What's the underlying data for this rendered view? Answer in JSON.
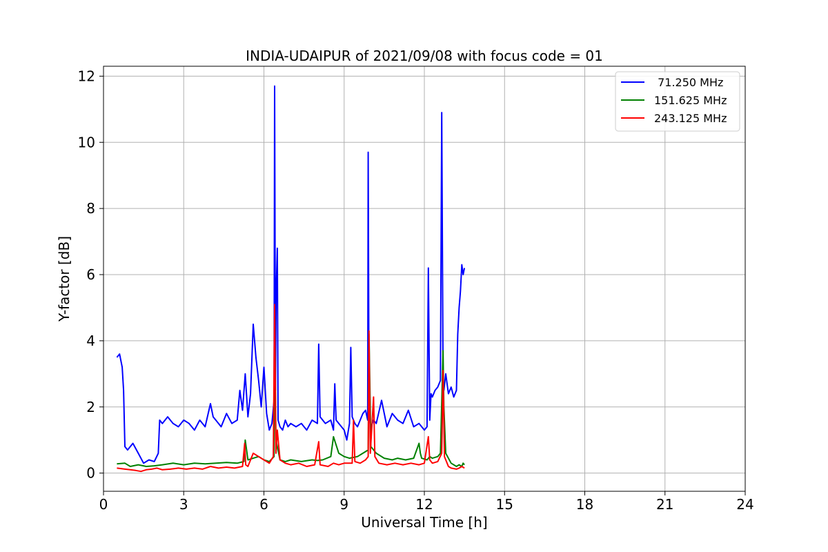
{
  "chart_data": {
    "type": "line",
    "title": "INDIA-UDAIPUR of 2021/09/08 with focus code = 01",
    "xlabel": "Universal Time [h]",
    "ylabel": "Y-factor [dB]",
    "xlim": [
      0,
      24
    ],
    "ylim": [
      -0.55,
      12.3
    ],
    "xticks": [
      "0",
      "3",
      "6",
      "9",
      "12",
      "15",
      "18",
      "21",
      "24"
    ],
    "yticks": [
      "0",
      "2",
      "4",
      "6",
      "8",
      "10",
      "12"
    ],
    "grid": true,
    "legend_position": "top-right",
    "series": [
      {
        "name": " 71.250 MHz",
        "color": "#0000ff",
        "x": [
          0.5,
          0.6,
          0.7,
          0.75,
          0.8,
          0.9,
          1.1,
          1.3,
          1.5,
          1.7,
          1.9,
          2.05,
          2.1,
          2.2,
          2.4,
          2.6,
          2.8,
          3.0,
          3.2,
          3.4,
          3.6,
          3.8,
          4.0,
          4.1,
          4.2,
          4.4,
          4.6,
          4.8,
          5.0,
          5.1,
          5.2,
          5.3,
          5.4,
          5.5,
          5.6,
          5.7,
          5.8,
          5.9,
          6.0,
          6.1,
          6.2,
          6.3,
          6.38,
          6.4,
          6.43,
          6.46,
          6.5,
          6.53,
          6.6,
          6.7,
          6.8,
          6.9,
          7.0,
          7.2,
          7.4,
          7.6,
          7.8,
          8.0,
          8.05,
          8.1,
          8.3,
          8.5,
          8.6,
          8.65,
          8.7,
          8.9,
          9.0,
          9.1,
          9.2,
          9.25,
          9.3,
          9.4,
          9.5,
          9.6,
          9.7,
          9.8,
          9.88,
          9.9,
          9.93,
          9.97,
          10.0,
          10.1,
          10.2,
          10.4,
          10.6,
          10.8,
          11.0,
          11.2,
          11.4,
          11.6,
          11.8,
          12.0,
          12.1,
          12.15,
          12.2,
          12.25,
          12.3,
          12.4,
          12.5,
          12.6,
          12.65,
          12.7,
          12.73,
          12.8,
          12.9,
          13.0,
          13.1,
          13.2,
          13.25,
          13.3,
          13.35,
          13.4,
          13.45,
          13.5
        ],
        "y": [
          3.5,
          3.6,
          3.2,
          2.5,
          0.8,
          0.7,
          0.9,
          0.6,
          0.3,
          0.4,
          0.35,
          0.6,
          1.6,
          1.5,
          1.7,
          1.5,
          1.4,
          1.6,
          1.5,
          1.3,
          1.6,
          1.4,
          2.1,
          1.7,
          1.6,
          1.4,
          1.8,
          1.5,
          1.6,
          2.5,
          1.9,
          3.0,
          1.7,
          2.4,
          4.5,
          3.5,
          2.8,
          2.0,
          3.2,
          1.8,
          1.3,
          1.5,
          2.2,
          11.7,
          2.5,
          5.5,
          6.8,
          1.6,
          1.4,
          1.3,
          1.6,
          1.4,
          1.5,
          1.4,
          1.5,
          1.3,
          1.6,
          1.5,
          3.9,
          1.7,
          1.5,
          1.6,
          1.3,
          2.7,
          1.6,
          1.4,
          1.3,
          1.0,
          1.5,
          3.8,
          1.7,
          1.5,
          1.4,
          1.6,
          1.8,
          1.9,
          1.6,
          9.7,
          2.0,
          1.5,
          1.4,
          1.6,
          1.5,
          2.2,
          1.4,
          1.8,
          1.6,
          1.5,
          1.9,
          1.4,
          1.5,
          1.3,
          1.4,
          6.2,
          1.6,
          2.4,
          2.3,
          2.5,
          2.6,
          2.8,
          10.9,
          2.9,
          2.5,
          3.0,
          2.4,
          2.6,
          2.3,
          2.5,
          4.2,
          5.0,
          5.5,
          6.3,
          6.0,
          6.2
        ],
        "stroke_width": 2
      },
      {
        "name": "151.625 MHz",
        "color": "#008000",
        "x": [
          0.5,
          0.8,
          1.0,
          1.3,
          1.6,
          1.9,
          2.2,
          2.6,
          3.0,
          3.4,
          3.8,
          4.2,
          4.6,
          5.0,
          5.25,
          5.3,
          5.4,
          5.6,
          5.8,
          6.0,
          6.2,
          6.38,
          6.4,
          6.45,
          6.6,
          6.8,
          7.0,
          7.4,
          7.8,
          8.0,
          8.2,
          8.5,
          8.6,
          8.8,
          9.0,
          9.2,
          9.5,
          9.7,
          9.9,
          9.93,
          10.0,
          10.2,
          10.5,
          10.8,
          11.0,
          11.3,
          11.6,
          11.8,
          11.85,
          11.9,
          12.1,
          12.2,
          12.3,
          12.5,
          12.6,
          12.7,
          12.73,
          12.8,
          13.0,
          13.2,
          13.3,
          13.4,
          13.45,
          13.5
        ],
        "y": [
          0.28,
          0.3,
          0.2,
          0.25,
          0.2,
          0.22,
          0.25,
          0.3,
          0.25,
          0.3,
          0.28,
          0.3,
          0.32,
          0.3,
          0.35,
          1.0,
          0.4,
          0.45,
          0.5,
          0.4,
          0.35,
          0.5,
          5.0,
          1.0,
          0.4,
          0.35,
          0.4,
          0.35,
          0.4,
          0.38,
          0.4,
          0.5,
          1.1,
          0.6,
          0.5,
          0.45,
          0.5,
          0.6,
          0.7,
          4.2,
          0.8,
          0.6,
          0.45,
          0.4,
          0.45,
          0.4,
          0.45,
          0.9,
          0.6,
          0.45,
          0.4,
          0.5,
          0.45,
          0.5,
          0.6,
          3.7,
          2.0,
          0.6,
          0.3,
          0.2,
          0.25,
          0.2,
          0.3,
          0.25
        ],
        "stroke_width": 2
      },
      {
        "name": "243.125 MHz",
        "color": "#ff0000",
        "x": [
          0.5,
          0.8,
          1.0,
          1.2,
          1.4,
          1.6,
          1.8,
          2.0,
          2.2,
          2.5,
          2.8,
          3.1,
          3.4,
          3.7,
          4.0,
          4.3,
          4.6,
          4.9,
          5.2,
          5.28,
          5.32,
          5.4,
          5.6,
          5.8,
          6.0,
          6.2,
          6.35,
          6.4,
          6.45,
          6.5,
          6.6,
          6.8,
          7.0,
          7.3,
          7.6,
          7.9,
          8.05,
          8.1,
          8.4,
          8.6,
          8.8,
          9.0,
          9.3,
          9.35,
          9.4,
          9.6,
          9.8,
          9.9,
          9.93,
          9.98,
          10.1,
          10.15,
          10.3,
          10.6,
          10.9,
          11.2,
          11.5,
          11.8,
          12.0,
          12.15,
          12.2,
          12.3,
          12.5,
          12.65,
          12.7,
          12.75,
          12.9,
          13.0,
          13.2,
          13.3,
          13.4,
          13.5
        ],
        "y": [
          0.15,
          0.12,
          0.1,
          0.08,
          0.05,
          0.1,
          0.12,
          0.15,
          0.1,
          0.12,
          0.15,
          0.12,
          0.15,
          0.12,
          0.2,
          0.15,
          0.18,
          0.15,
          0.2,
          0.9,
          0.25,
          0.2,
          0.6,
          0.5,
          0.4,
          0.3,
          0.5,
          5.1,
          0.6,
          1.3,
          0.4,
          0.3,
          0.25,
          0.3,
          0.2,
          0.25,
          0.95,
          0.25,
          0.2,
          0.3,
          0.25,
          0.3,
          0.3,
          1.6,
          0.35,
          0.3,
          0.4,
          0.5,
          4.3,
          0.6,
          2.3,
          0.5,
          0.3,
          0.25,
          0.3,
          0.25,
          0.3,
          0.25,
          0.3,
          1.1,
          0.4,
          0.3,
          0.35,
          0.6,
          3.1,
          0.5,
          0.2,
          0.15,
          0.12,
          0.15,
          0.2,
          0.15
        ],
        "stroke_width": 2
      }
    ]
  }
}
